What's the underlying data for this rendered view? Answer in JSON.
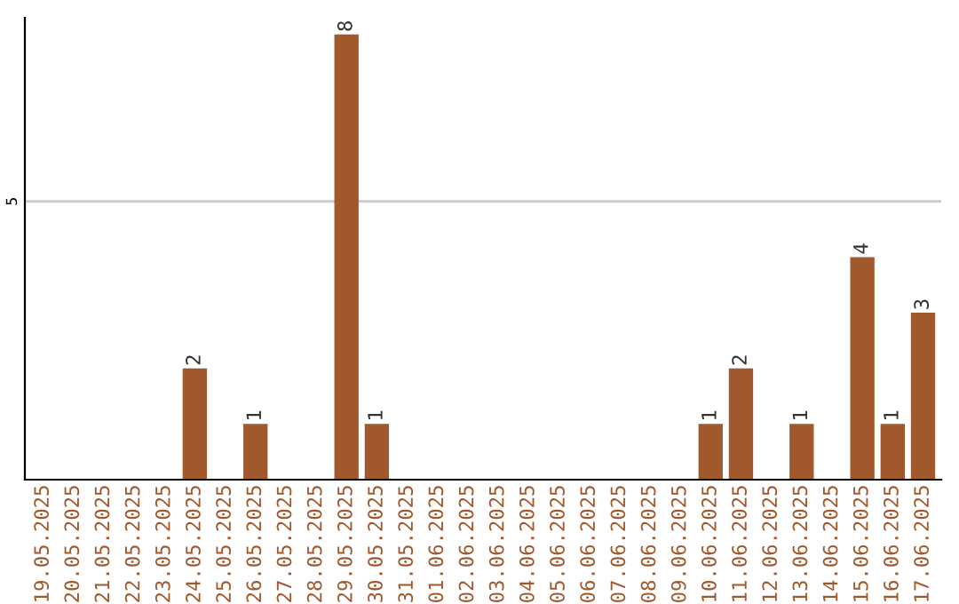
{
  "chart_data": {
    "type": "bar",
    "categories": [
      "19.05.2025",
      "20.05.2025",
      "21.05.2025",
      "22.05.2025",
      "23.05.2025",
      "24.05.2025",
      "25.05.2025",
      "26.05.2025",
      "27.05.2025",
      "28.05.2025",
      "29.05.2025",
      "30.05.2025",
      "31.05.2025",
      "01.06.2025",
      "02.06.2025",
      "03.06.2025",
      "04.06.2025",
      "05.06.2025",
      "06.06.2025",
      "07.06.2025",
      "08.06.2025",
      "09.06.2025",
      "10.06.2025",
      "11.06.2025",
      "12.06.2025",
      "13.06.2025",
      "14.06.2025",
      "15.06.2025",
      "16.06.2025",
      "17.06.2025"
    ],
    "values": [
      0,
      0,
      0,
      0,
      0,
      2,
      0,
      1,
      0,
      0,
      8,
      1,
      0,
      0,
      0,
      0,
      0,
      0,
      0,
      0,
      0,
      0,
      1,
      2,
      0,
      1,
      0,
      4,
      1,
      3
    ],
    "value_labels": [
      null,
      null,
      null,
      null,
      null,
      "2",
      null,
      "1",
      null,
      null,
      "8",
      "1",
      null,
      null,
      null,
      null,
      null,
      null,
      null,
      null,
      null,
      null,
      "1",
      "2",
      null,
      "1",
      null,
      "4",
      "1",
      "3"
    ],
    "color": "#a0582c",
    "ylim": [
      0,
      8.3
    ],
    "yticks": [
      5
    ],
    "grid": "y",
    "legend": false
  }
}
